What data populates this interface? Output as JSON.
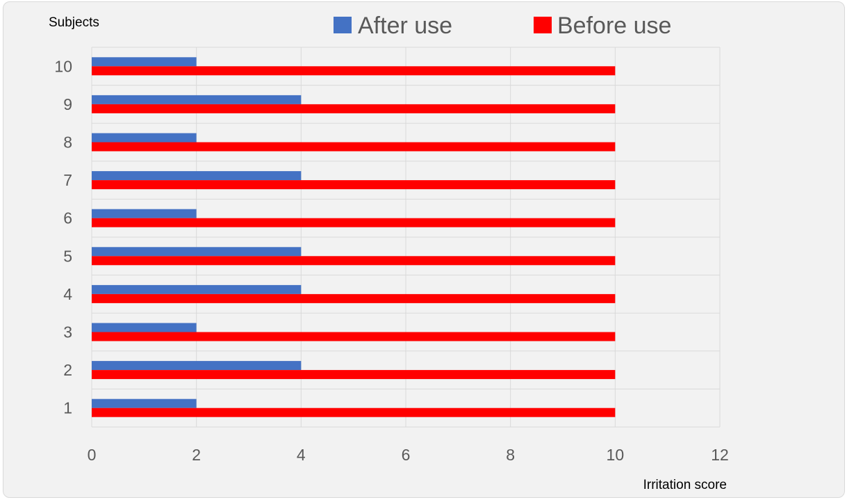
{
  "chart_data": {
    "type": "bar",
    "orientation": "horizontal",
    "categories": [
      "1",
      "2",
      "3",
      "4",
      "5",
      "6",
      "7",
      "8",
      "9",
      "10"
    ],
    "series": [
      {
        "name": "After use",
        "values": [
          2,
          4,
          2,
          4,
          4,
          2,
          4,
          2,
          4,
          2
        ],
        "color": "#4472c4"
      },
      {
        "name": "Before use",
        "values": [
          10,
          10,
          10,
          10,
          10,
          10,
          10,
          10,
          10,
          10
        ],
        "color": "#ff0000"
      }
    ],
    "xlabel": "Irritation score",
    "ylabel": "Subjects",
    "xlim": [
      0,
      12
    ],
    "xticks": [
      0,
      2,
      4,
      6,
      8,
      10,
      12
    ],
    "grid": true,
    "legend_position": "top"
  }
}
